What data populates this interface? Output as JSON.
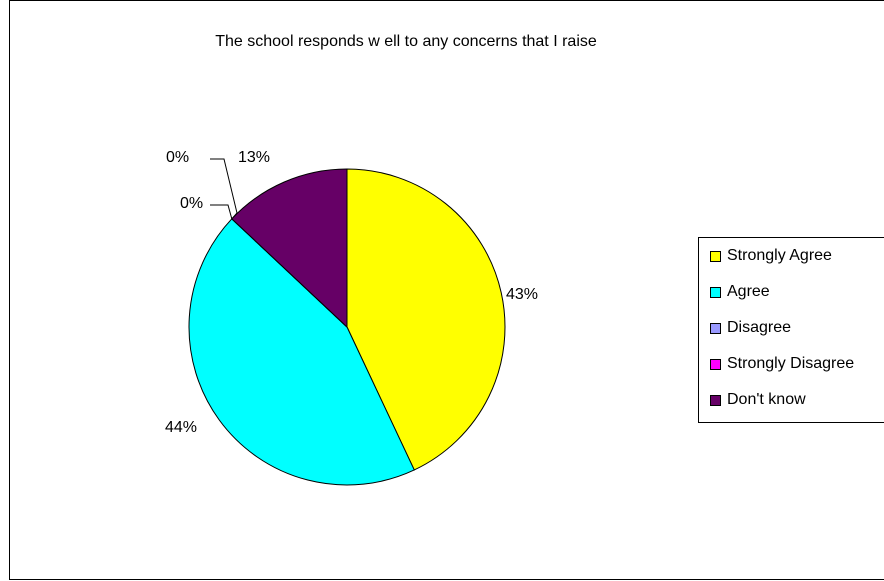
{
  "chart_data": {
    "type": "pie",
    "title": "The school responds w ell to any concerns that I raise",
    "categories": [
      "Strongly Agree",
      "Agree",
      "Disagree",
      "Strongly Disagree",
      "Don't know"
    ],
    "values": [
      43,
      44,
      0,
      0,
      13
    ],
    "labels": [
      "43%",
      "44%",
      "0%",
      "0%",
      "13%"
    ],
    "colors": [
      "#ffff00",
      "#00ffff",
      "#9999ff",
      "#ff00ff",
      "#660066"
    ],
    "legend_position": "right"
  }
}
